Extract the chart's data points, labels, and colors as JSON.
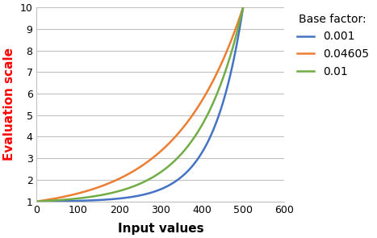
{
  "title": "",
  "xlabel": "Input values",
  "ylabel": "Evaluation scale",
  "xlim": [
    0,
    600
  ],
  "ylim": [
    1,
    10
  ],
  "xticks": [
    0,
    100,
    200,
    300,
    400,
    500,
    600
  ],
  "yticks": [
    1,
    2,
    3,
    4,
    5,
    6,
    7,
    8,
    9,
    10
  ],
  "x_max": 500,
  "y_min": 1,
  "y_max": 10,
  "base_factors": [
    0.001,
    0.04605,
    0.01
  ],
  "colors": [
    "#4472C4",
    "#ED7D31",
    "#70AD47"
  ],
  "labels": [
    "0.001",
    "0.04605",
    "0.01"
  ],
  "legend_title": "Base factor:",
  "ylabel_color": "#FF0000",
  "xlabel_fontsize": 11,
  "ylabel_fontsize": 11,
  "legend_fontsize": 10,
  "legend_title_fontsize": 10,
  "line_width": 1.8,
  "grid_color": "#C0C0C0",
  "grid_linewidth": 0.8,
  "background_color": "#FFFFFF",
  "figsize": [
    4.67,
    2.95
  ],
  "dpi": 100
}
